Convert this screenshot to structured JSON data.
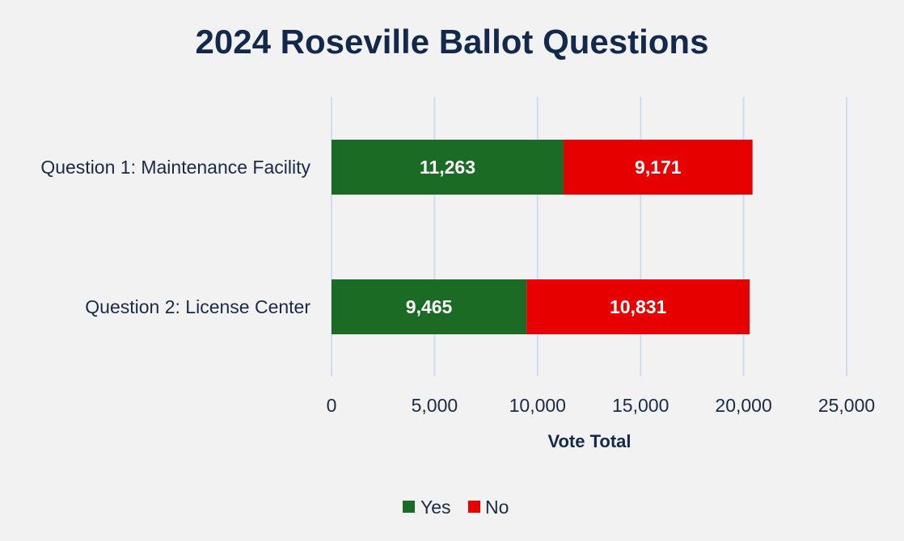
{
  "chart_data": {
    "type": "bar",
    "orientation": "horizontal",
    "stacked": true,
    "title": "2024 Roseville Ballot Questions",
    "categories": [
      "Question 1: Maintenance Facility",
      "Question 2: License Center"
    ],
    "series": [
      {
        "name": "Yes",
        "color": "#1b6b24",
        "values": [
          11263,
          9465
        ],
        "labels": [
          "11,263",
          "9,465"
        ]
      },
      {
        "name": "No",
        "color": "#e60000",
        "values": [
          9171,
          10831
        ],
        "labels": [
          "9,171",
          "10,831"
        ]
      }
    ],
    "xlabel": "Vote Total",
    "ylabel": "",
    "xlim": [
      0,
      25000
    ],
    "xticks": [
      0,
      5000,
      10000,
      15000,
      20000,
      25000
    ],
    "xtick_labels": [
      "0",
      "5,000",
      "10,000",
      "15,000",
      "20,000",
      "25,000"
    ],
    "grid": true,
    "legend_position": "bottom"
  }
}
